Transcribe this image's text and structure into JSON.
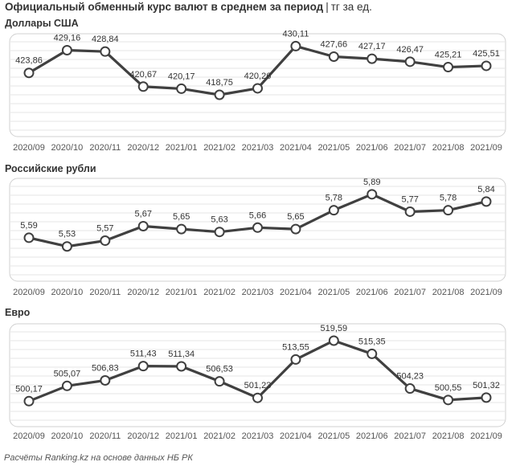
{
  "header": {
    "title": "Официальный обменный курс валют в среднем за период",
    "unit": "тг за ед."
  },
  "footer": "Расчёты Ranking.kz на основе данных НБ РК",
  "style": {
    "line_color": "#404040",
    "marker_fill": "#ffffff",
    "border_color": "#d0d0d0",
    "grid_color": "#e6e6e6"
  },
  "chart_data": [
    {
      "type": "line",
      "title": "Доллары США",
      "categories": [
        "2020/09",
        "2020/10",
        "2020/11",
        "2020/12",
        "2021/01",
        "2021/02",
        "2021/03",
        "2021/04",
        "2021/05",
        "2021/06",
        "2021/07",
        "2021/08",
        "2021/09"
      ],
      "values": [
        423.86,
        429.16,
        428.84,
        420.67,
        420.17,
        418.75,
        420.26,
        430.11,
        427.66,
        427.17,
        426.47,
        425.21,
        425.51
      ],
      "labels": [
        "423,86",
        "429,16",
        "428,84",
        "420,67",
        "420,17",
        "418,75",
        "420,26",
        "430,11",
        "427,66",
        "427,17",
        "426,47",
        "425,21",
        "425,51"
      ],
      "ylim": [
        409,
        433
      ],
      "grid": true,
      "legend": "none"
    },
    {
      "type": "line",
      "title": "Российские рубли",
      "categories": [
        "2020/09",
        "2020/10",
        "2020/11",
        "2020/12",
        "2021/01",
        "2021/02",
        "2021/03",
        "2021/04",
        "2021/05",
        "2021/06",
        "2021/07",
        "2021/08",
        "2021/09"
      ],
      "values": [
        5.59,
        5.53,
        5.57,
        5.67,
        5.65,
        5.63,
        5.66,
        5.65,
        5.78,
        5.89,
        5.77,
        5.78,
        5.84
      ],
      "labels": [
        "5,59",
        "5,53",
        "5,57",
        "5,67",
        "5,65",
        "5,63",
        "5,66",
        "5,65",
        "5,78",
        "5,89",
        "5,77",
        "5,78",
        "5,84"
      ],
      "ylim": [
        5.29,
        6.0
      ],
      "grid": true,
      "legend": "none"
    },
    {
      "type": "line",
      "title": "Евро",
      "categories": [
        "2020/09",
        "2020/10",
        "2020/11",
        "2020/12",
        "2021/01",
        "2021/02",
        "2021/03",
        "2021/04",
        "2021/05",
        "2021/06",
        "2021/07",
        "2021/08",
        "2021/09"
      ],
      "values": [
        500.17,
        505.07,
        506.83,
        511.43,
        511.34,
        506.53,
        501.23,
        513.55,
        519.59,
        515.35,
        504.23,
        500.55,
        501.32
      ],
      "labels": [
        "500,17",
        "505,07",
        "506,83",
        "511,43",
        "511,34",
        "506,53",
        "501,23",
        "513,55",
        "519,59",
        "515,35",
        "504,23",
        "500,55",
        "501,32"
      ],
      "ylim": [
        492,
        525
      ],
      "grid": true,
      "legend": "none"
    }
  ]
}
